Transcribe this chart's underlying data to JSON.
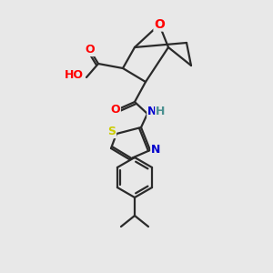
{
  "bg_color": "#e8e8e8",
  "bond_color": "#2a2a2a",
  "bond_width": 1.6,
  "atom_colors": {
    "O": "#ff0000",
    "N": "#0000cc",
    "S": "#cccc00",
    "H_teal": "#4a9090",
    "C": "#2a2a2a"
  },
  "font_size": 9,
  "figsize": [
    3.0,
    3.0
  ],
  "dpi": 100
}
